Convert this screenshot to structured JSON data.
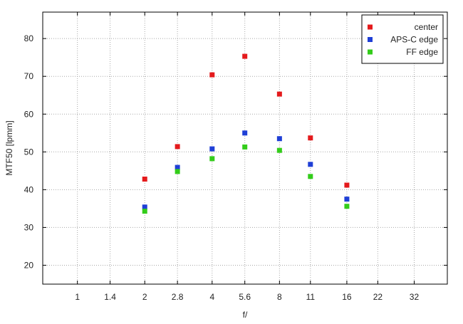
{
  "chart_data": {
    "type": "scatter",
    "title": "",
    "xlabel": "f/",
    "ylabel": "MTF50 [lpmm]",
    "x_scale": "log2",
    "x_ticks": [
      {
        "value": 1,
        "label": "1"
      },
      {
        "value": 1.4,
        "label": "1.4"
      },
      {
        "value": 2,
        "label": "2"
      },
      {
        "value": 2.8,
        "label": "2.8"
      },
      {
        "value": 4,
        "label": "4"
      },
      {
        "value": 5.6,
        "label": "5.6"
      },
      {
        "value": 8,
        "label": "8"
      },
      {
        "value": 11,
        "label": "11"
      },
      {
        "value": 16,
        "label": "16"
      },
      {
        "value": 22,
        "label": "22"
      },
      {
        "value": 32,
        "label": "32"
      }
    ],
    "xlim": [
      0.7,
      45
    ],
    "ylim": [
      15,
      87
    ],
    "y_ticks": [
      20,
      30,
      40,
      50,
      60,
      70,
      80
    ],
    "grid": true,
    "legend_position": "top-right",
    "series": [
      {
        "name": "center",
        "color": "#e41a1c",
        "points": [
          {
            "x": 2,
            "y": 42.8
          },
          {
            "x": 2.8,
            "y": 51.4
          },
          {
            "x": 4,
            "y": 70.4
          },
          {
            "x": 5.6,
            "y": 75.3
          },
          {
            "x": 8,
            "y": 65.3
          },
          {
            "x": 11,
            "y": 53.7
          },
          {
            "x": 16,
            "y": 41.2
          }
        ]
      },
      {
        "name": "APS-C edge",
        "color": "#1f3fd6",
        "points": [
          {
            "x": 2,
            "y": 35.4
          },
          {
            "x": 2.8,
            "y": 45.9
          },
          {
            "x": 4,
            "y": 50.8
          },
          {
            "x": 5.6,
            "y": 55.0
          },
          {
            "x": 8,
            "y": 53.5
          },
          {
            "x": 11,
            "y": 46.7
          },
          {
            "x": 16,
            "y": 37.5
          }
        ]
      },
      {
        "name": "FF edge",
        "color": "#33cc1a",
        "points": [
          {
            "x": 2,
            "y": 34.3
          },
          {
            "x": 2.8,
            "y": 44.8
          },
          {
            "x": 4,
            "y": 48.2
          },
          {
            "x": 5.6,
            "y": 51.3
          },
          {
            "x": 8,
            "y": 50.4
          },
          {
            "x": 11,
            "y": 43.5
          },
          {
            "x": 16,
            "y": 35.6
          }
        ]
      }
    ]
  }
}
